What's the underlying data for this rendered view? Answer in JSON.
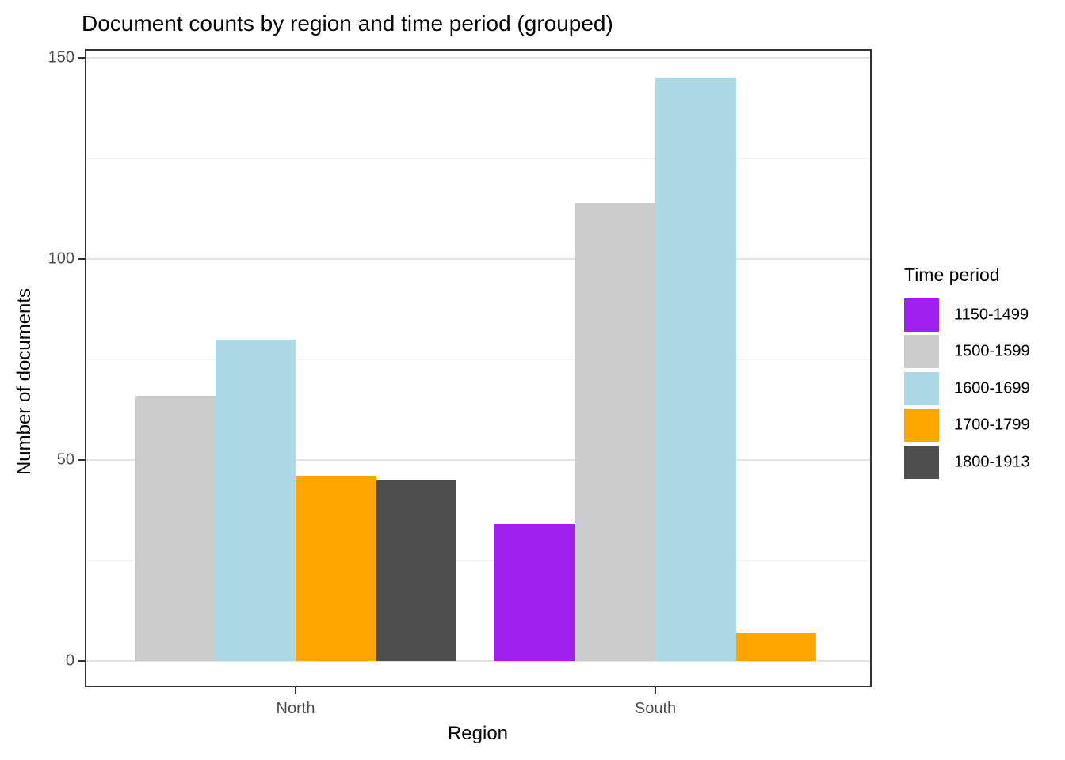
{
  "chart_data": {
    "type": "bar",
    "title": "Document counts by region and time period (grouped)",
    "xlabel": "Region",
    "ylabel": "Number of documents",
    "categories": [
      "North",
      "South"
    ],
    "legend_title": "Time period",
    "legend_position": "right",
    "series": [
      {
        "name": "1150-1499",
        "color": "#A020F0",
        "values": [
          null,
          34
        ]
      },
      {
        "name": "1500-1599",
        "color": "#CCCCCC",
        "values": [
          66,
          114
        ]
      },
      {
        "name": "1600-1699",
        "color": "#ADD8E6",
        "values": [
          80,
          145
        ]
      },
      {
        "name": "1700-1799",
        "color": "#FFA500",
        "values": [
          46,
          7
        ]
      },
      {
        "name": "1800-1913",
        "color": "#4D4D4D",
        "values": [
          45,
          null
        ]
      }
    ],
    "y_ticks": [
      0,
      50,
      100,
      150
    ],
    "y_minor_ticks": [
      25,
      75,
      125
    ],
    "ylim": [
      0,
      152
    ],
    "grid": true,
    "colors": {
      "axis_text": "#4D4D4D",
      "axis_title": "#000000",
      "panel_border": "#333333",
      "grid_major": "#E4E4E4",
      "grid_minor": "#F0F0F0",
      "background": "#FFFFFF"
    }
  }
}
